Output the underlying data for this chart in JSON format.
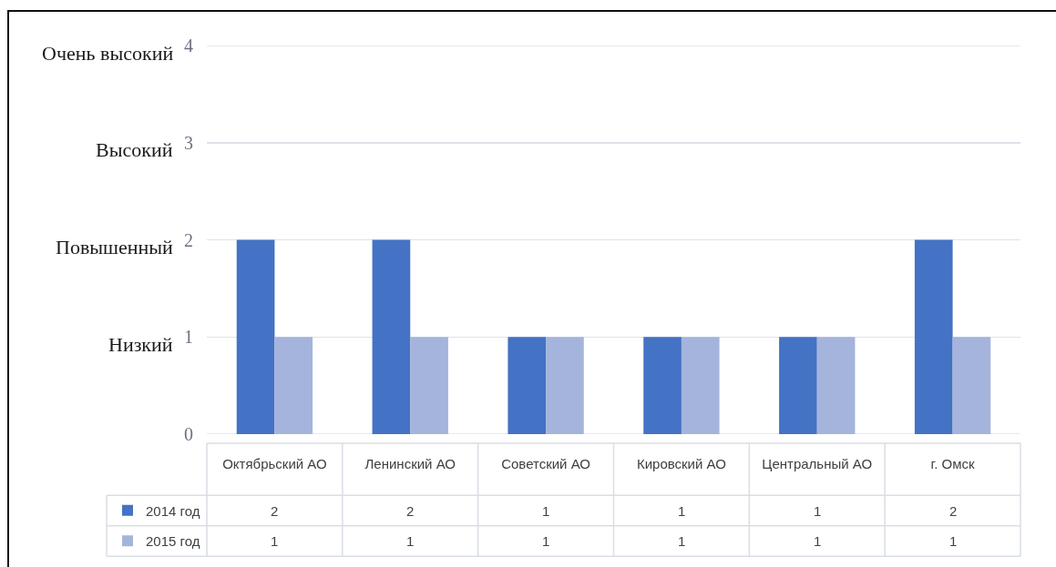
{
  "chart_data": {
    "type": "bar",
    "categories": [
      "Октябрьский АО",
      "Ленинский АО",
      "Советский АО",
      "Кировский АО",
      "Центральный АО",
      "г. Омск"
    ],
    "series": [
      {
        "name": "2014 год",
        "color": "#4472c4",
        "values": [
          2,
          2,
          1,
          1,
          1,
          2
        ]
      },
      {
        "name": "2015 год",
        "color": "#a5b4dc",
        "values": [
          1,
          1,
          1,
          1,
          1,
          1
        ]
      }
    ],
    "ylim": [
      0,
      4
    ],
    "yticks": [
      0,
      1,
      2,
      3,
      4
    ],
    "grid": "y",
    "legend": "bottom left",
    "data_labels": true,
    "annotations": [
      "Очень высокий",
      "Высокий",
      "Повышенный",
      "Низкий"
    ]
  }
}
